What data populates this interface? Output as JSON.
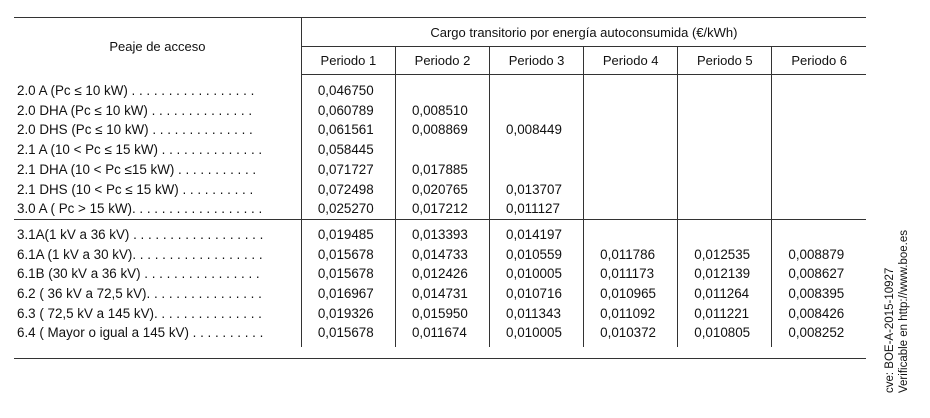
{
  "header": {
    "access_toll": "Peaje de acceso",
    "group_title": "Cargo transitorio por energía autoconsumida (€/kWh)",
    "periods": [
      "Periodo 1",
      "Periodo 2",
      "Periodo 3",
      "Periodo 4",
      "Periodo 5",
      "Periodo 6"
    ]
  },
  "group1": [
    {
      "label": "2.0 A (Pc ≤ 10 kW) . . . . . . . . . . . . . . . . .",
      "v": [
        "0,046750",
        "",
        "",
        "",
        "",
        ""
      ]
    },
    {
      "label": "2.0 DHA (Pc ≤ 10 kW)  . . . . . . . . . . . . . .",
      "v": [
        "0,060789",
        "0,008510",
        "",
        "",
        "",
        ""
      ]
    },
    {
      "label": "2.0 DHS (Pc ≤ 10 kW)  . . . . . . . . . . . . . .",
      "v": [
        "0,061561",
        "0,008869",
        "0,008449",
        "",
        "",
        ""
      ]
    },
    {
      "label": "2.1 A (10 < Pc ≤ 15 kW) . . . . . . . . . . . . . .",
      "v": [
        "0,058445",
        "",
        "",
        "",
        "",
        ""
      ]
    },
    {
      "label": "2.1 DHA (10 < Pc ≤15 kW)  . . . . . . . . . . .",
      "v": [
        "0,071727",
        "0,017885",
        "",
        "",
        "",
        ""
      ]
    },
    {
      "label": "2.1 DHS (10 < Pc ≤ 15 kW)  . . . . . . . . . .",
      "v": [
        "0,072498",
        "0,020765",
        "0,013707",
        "",
        "",
        ""
      ]
    },
    {
      "label": "3.0 A ( Pc > 15 kW). . . . . . . . . . . . . . . . . .",
      "v": [
        "0,025270",
        "0,017212",
        "0,011127",
        "",
        "",
        ""
      ]
    }
  ],
  "group2": [
    {
      "label": "3.1A(1 kV a 36 kV) . . . . . . . . . . . . . . . . . .",
      "v": [
        "0,019485",
        "0,013393",
        "0,014197",
        "",
        "",
        ""
      ]
    },
    {
      "label": "6.1A (1 kV a 30 kV). . . . . . . . . . . . . . . . . .",
      "v": [
        "0,015678",
        "0,014733",
        "0,010559",
        "0,011786",
        "0,012535",
        "0,008879"
      ]
    },
    {
      "label": "6.1B (30 kV a 36 kV)  . . . . . . . . . . . . . . . .",
      "v": [
        "0,015678",
        "0,012426",
        "0,010005",
        "0,011173",
        "0,012139",
        "0,008627"
      ]
    },
    {
      "label": "6.2 ( 36 kV a 72,5 kV). . . . . . . . . . . . . . . .",
      "v": [
        "0,016967",
        "0,014731",
        "0,010716",
        "0,010965",
        "0,011264",
        "0,008395"
      ]
    },
    {
      "label": "6.3 ( 72,5 kV a 145 kV). . . . . . . . . . . . . . .",
      "v": [
        "0,019326",
        "0,015950",
        "0,011343",
        "0,011092",
        "0,011221",
        "0,008426"
      ]
    },
    {
      "label": "6.4 ( Mayor o igual a 145 kV) . . . . . . . . . .",
      "v": [
        "0,015678",
        "0,011674",
        "0,010005",
        "0,010372",
        "0,010805",
        "0,008252"
      ]
    }
  ],
  "side_note": {
    "line1": "cve: BOE-A-2015-10927",
    "line2": "Verificable en http://www.boe.es"
  }
}
